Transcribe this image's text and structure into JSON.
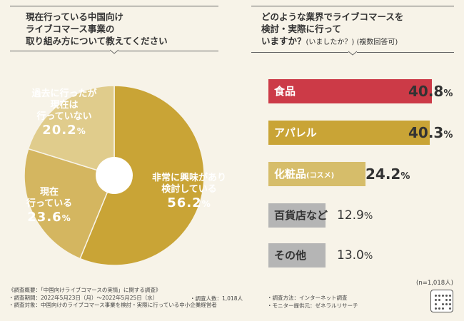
{
  "left_question": {
    "lines": [
      "現在行っている中国向け",
      "ライブコマース事業の",
      "取り組み方について教えてください"
    ]
  },
  "right_question": {
    "lines": [
      "どのような業界でライブコマースを",
      "検討・実際に行って"
    ],
    "last_line_main": "いますか？",
    "last_line_sub": "(いましたか？) (複数回答可)"
  },
  "chart_data": [
    {
      "type": "pie",
      "title": "現在行っている中国向けライブコマース事業の取り組み方について教えてください",
      "slices": [
        {
          "label": "非常に興味があり検討している",
          "value": 56.2,
          "color": "#c9a436",
          "pct_text": "56.2",
          "lines": [
            "非常に興味があり",
            "検討している"
          ]
        },
        {
          "label": "現在行っている",
          "value": 23.6,
          "color": "#d4b660",
          "pct_text": "23.6",
          "lines": [
            "現在",
            "行っている"
          ]
        },
        {
          "label": "過去に行ったが現在は行っていない",
          "value": 20.2,
          "color": "#e0cc8c",
          "pct_text": "20.2",
          "lines": [
            "過去に行ったが",
            "現在は",
            "行っていない"
          ]
        }
      ],
      "percent_symbol": "%"
    },
    {
      "type": "bar",
      "orientation": "horizontal",
      "title": "どのような業界でライブコマースを検討・実際に行っていますか？(いましたか？)(複数回答可)",
      "categories": [
        "食品",
        "アパレル",
        "化粧品",
        "百貨店など",
        "その他"
      ],
      "category_suffix": [
        "",
        "",
        "(コスメ)",
        "",
        ""
      ],
      "values": [
        40.8,
        40.3,
        24.2,
        12.9,
        13.0
      ],
      "value_text": [
        "40.8",
        "40.3",
        "24.2",
        "12.9",
        "13.0"
      ],
      "colors": [
        "#cc3a47",
        "#c9a436",
        "#d6bd6a",
        "#b5b5b5",
        "#b5b5b5"
      ],
      "xlim": [
        0,
        50
      ],
      "percent_symbol": "%",
      "sample_note": "(n=1,018人)"
    }
  ],
  "footer": {
    "left_rows": [
      "《調査概要：「中国向けライブコマースの実情」に関する調査》",
      "・調査期間：2022年5月23日（月）～2022年5月25日（水）",
      "・調査対象：中国向けのライブコマース事業を検討・実際に行っている中小企業経営者"
    ],
    "respondents": "・調査人数：1,018人",
    "method": "・調査方法：インターネット調査",
    "provider": "・モニター提供元：ゼネラルリサーチ"
  }
}
